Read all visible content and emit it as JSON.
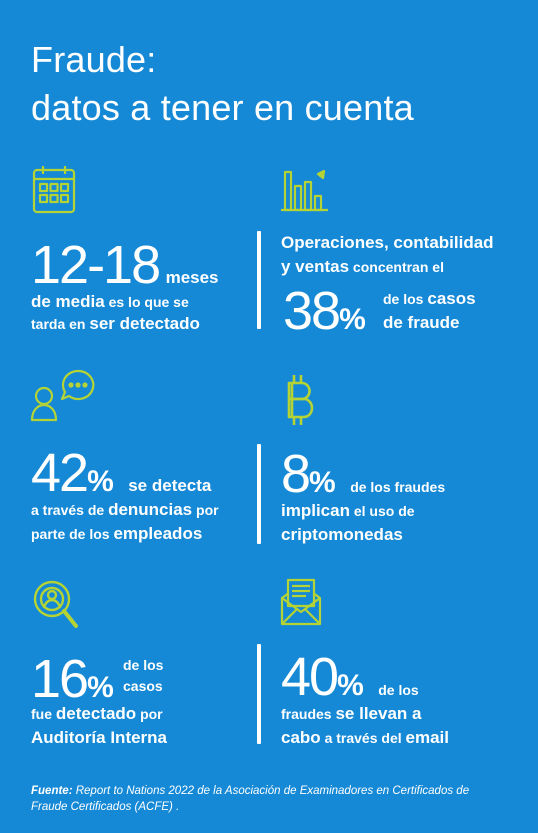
{
  "title": {
    "line1": "Fraude:",
    "line2": "datos a tener en cuenta"
  },
  "colors": {
    "background": "#1589d6",
    "accent": "#b5d334",
    "text": "#ffffff"
  },
  "stats": [
    {
      "icon": "calendar-icon",
      "value": "12-18",
      "unit": "meses",
      "desc1a": "de media",
      "desc1b": " es lo que se",
      "desc2a": "tarda en ",
      "desc2b": "ser detectado"
    },
    {
      "icon": "bar-chart-icon",
      "pre1": "Operaciones, contabilidad",
      "pre2a": "y ventas",
      "pre2b": " concentran el",
      "value": "38",
      "percent": "%",
      "post1a": "de los ",
      "post1b": "casos",
      "post2": "de fraude"
    },
    {
      "icon": "chat-user-icon",
      "value": "42",
      "percent": "%",
      "after": "se detecta",
      "desc1a": "a través de ",
      "desc1b": "denuncias",
      "desc1c": " por",
      "desc2a": "parte de los ",
      "desc2b": "empleados"
    },
    {
      "icon": "bitcoin-icon",
      "value": "8",
      "percent": "%",
      "after": "de los fraudes",
      "desc1a": "implican",
      "desc1b": " el uso de",
      "desc2": "criptomonedas"
    },
    {
      "icon": "magnifier-user-icon",
      "value": "16",
      "percent": "%",
      "after1": "de los",
      "after2": "casos",
      "desc1a": "fue ",
      "desc1b": "detectado",
      "desc1c": " por",
      "desc2": "Auditoría Interna"
    },
    {
      "icon": "email-icon",
      "value": "40",
      "percent": "%",
      "after": "de los",
      "desc1a": "fraudes ",
      "desc1b": "se llevan a",
      "desc2a": "cabo",
      "desc2b": " a través del ",
      "desc2c": "email"
    }
  ],
  "source": {
    "label": "Fuente:",
    "text": " Report to Nations 2022 de la Asociación de Examinadores en Certificados de Fraude Certificados (ACFE) ."
  }
}
